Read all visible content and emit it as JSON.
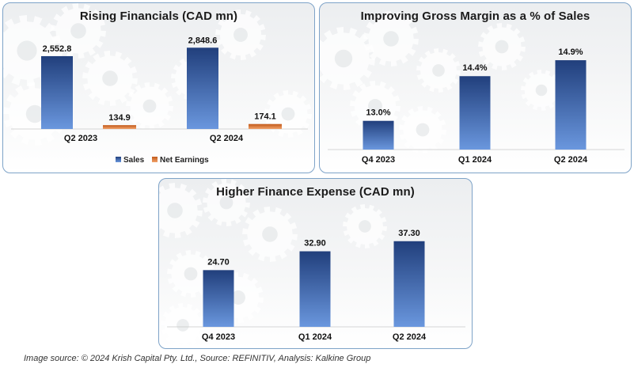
{
  "colors": {
    "sales_top": "#213f7c",
    "sales_bottom": "#6a97de",
    "earnings_top": "#c25a1a",
    "earnings_bottom": "#f1a26a",
    "panel_border": "#7ea3c8"
  },
  "chart_data": [
    {
      "type": "bar",
      "title": "Rising Financials (CAD mn)",
      "categories": [
        "Q2 2023",
        "Q2 2024"
      ],
      "series": [
        {
          "name": "Sales",
          "values": [
            2552.8,
            2848.6
          ],
          "labels": [
            "2,552.8",
            "2,848.6"
          ]
        },
        {
          "name": "Net Earnings",
          "values": [
            134.9,
            174.1
          ],
          "labels": [
            "134.9",
            "174.1"
          ]
        }
      ],
      "ylim": [
        0,
        3300
      ],
      "legend": "bottom"
    },
    {
      "type": "bar",
      "title": "Improving Gross Margin as a % of Sales",
      "categories": [
        "Q4 2023",
        "Q1 2024",
        "Q2 2024"
      ],
      "series": [
        {
          "values": [
            13.0,
            14.4,
            14.9
          ],
          "labels": [
            "13.0%",
            "14.4%",
            "14.9%"
          ]
        }
      ],
      "ylim": [
        12.1,
        15.15
      ]
    },
    {
      "type": "bar",
      "title": "Higher Finance Expense (CAD mn)",
      "categories": [
        "Q4 2023",
        "Q1 2024",
        "Q2 2024"
      ],
      "series": [
        {
          "values": [
            24.7,
            32.9,
            37.3
          ],
          "labels": [
            "24.70",
            "32.90",
            "37.30"
          ]
        }
      ],
      "ylim": [
        0,
        44.8
      ]
    }
  ],
  "caption": "Image source: © 2024 Krish Capital Pty. Ltd., Source: REFINITIV, Analysis: Kalkine Group"
}
